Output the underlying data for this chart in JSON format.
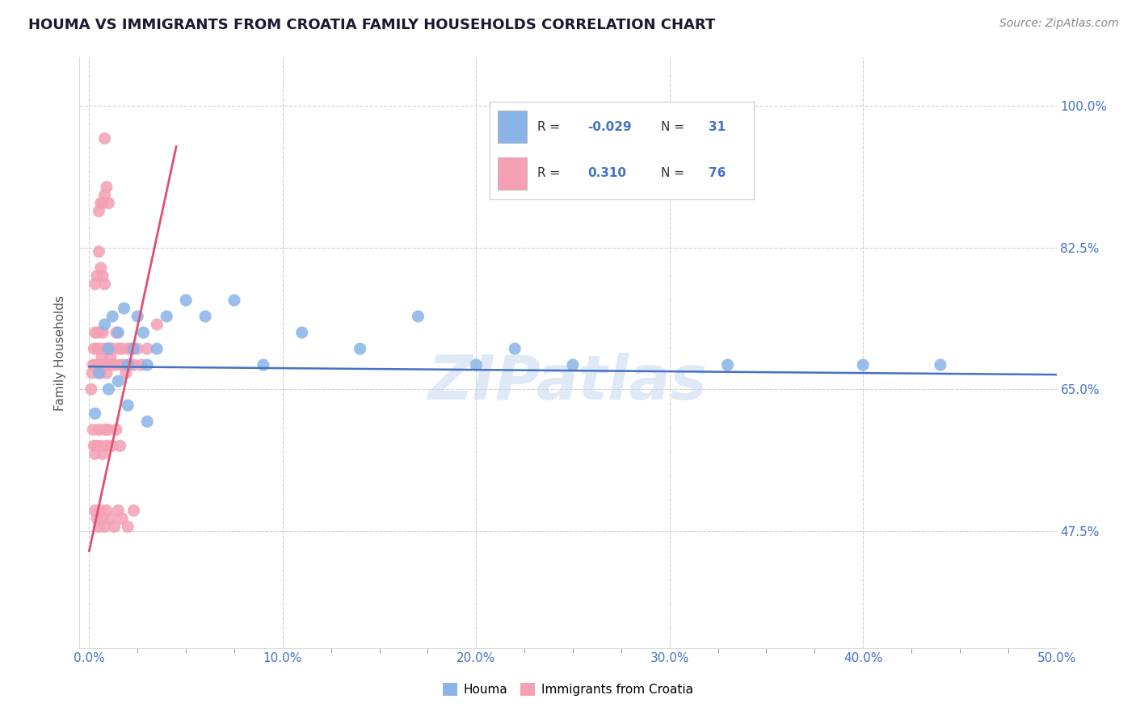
{
  "title": "HOUMA VS IMMIGRANTS FROM CROATIA FAMILY HOUSEHOLDS CORRELATION CHART",
  "source": "Source: ZipAtlas.com",
  "ylabel_left": "Family Households",
  "x_tick_labels": [
    "0.0%",
    "10.0%",
    "20.0%",
    "30.0%",
    "40.0%",
    "50.0%"
  ],
  "x_tick_values": [
    0.0,
    10.0,
    20.0,
    30.0,
    40.0,
    50.0
  ],
  "x_minor_ticks": [
    2.5,
    5.0,
    7.5,
    12.5,
    15.0,
    17.5,
    22.5,
    25.0,
    27.5,
    32.5,
    35.0,
    37.5,
    42.5,
    45.0,
    47.5
  ],
  "y_tick_labels_right": [
    "47.5%",
    "65.0%",
    "82.5%",
    "100.0%"
  ],
  "y_tick_values_right": [
    47.5,
    65.0,
    82.5,
    100.0
  ],
  "xlim": [
    -0.5,
    50.0
  ],
  "ylim": [
    33.0,
    106.0
  ],
  "houma_R": -0.029,
  "houma_N": 31,
  "croatia_R": 0.31,
  "croatia_N": 76,
  "houma_color": "#8ab4e8",
  "croatia_color": "#f4a0b5",
  "houma_line_color": "#4472c4",
  "croatia_line_color": "#e05070",
  "background_color": "#ffffff",
  "grid_color": "#cccccc",
  "title_color": "#1a1a2e",
  "title_fontsize": 13,
  "watermark_color": "#c8d8f0",
  "legend_r_color": "#4472c4",
  "legend_n_color": "#4472c4",
  "houma_scatter_x": [
    0.3,
    0.5,
    0.8,
    1.0,
    1.2,
    1.5,
    1.8,
    2.0,
    2.3,
    2.5,
    2.8,
    3.0,
    3.5,
    4.0,
    5.0,
    6.0,
    7.5,
    9.0,
    11.0,
    14.0,
    17.0,
    20.0,
    22.0,
    25.0,
    33.0,
    40.0,
    44.0,
    1.0,
    2.0,
    3.0,
    1.5
  ],
  "houma_scatter_y": [
    62.0,
    67.0,
    73.0,
    70.0,
    74.0,
    72.0,
    75.0,
    68.0,
    70.0,
    74.0,
    72.0,
    68.0,
    70.0,
    74.0,
    76.0,
    74.0,
    76.0,
    68.0,
    72.0,
    70.0,
    74.0,
    68.0,
    70.0,
    68.0,
    68.0,
    68.0,
    68.0,
    65.0,
    63.0,
    61.0,
    66.0
  ],
  "croatia_scatter_x": [
    0.1,
    0.15,
    0.2,
    0.25,
    0.3,
    0.35,
    0.4,
    0.45,
    0.5,
    0.55,
    0.6,
    0.65,
    0.7,
    0.75,
    0.8,
    0.85,
    0.9,
    0.95,
    1.0,
    1.05,
    1.1,
    1.15,
    1.2,
    1.3,
    1.4,
    1.5,
    1.6,
    1.7,
    1.8,
    1.9,
    2.0,
    2.1,
    2.2,
    2.3,
    2.5,
    2.7,
    3.0,
    3.5,
    0.3,
    0.4,
    0.5,
    0.6,
    0.7,
    0.8,
    0.5,
    0.6,
    0.7,
    0.8,
    0.9,
    1.0,
    0.2,
    0.25,
    0.3,
    0.4,
    0.5,
    0.6,
    0.7,
    0.8,
    0.9,
    1.0,
    1.2,
    1.4,
    1.6,
    0.3,
    0.4,
    0.5,
    0.6,
    0.7,
    0.8,
    0.9,
    1.1,
    1.3,
    1.5,
    1.7,
    2.0,
    2.3
  ],
  "croatia_scatter_y": [
    65.0,
    67.0,
    68.0,
    70.0,
    72.0,
    68.0,
    70.0,
    72.0,
    68.0,
    70.0,
    67.0,
    69.0,
    72.0,
    68.0,
    70.0,
    68.0,
    67.0,
    70.0,
    68.0,
    70.0,
    69.0,
    68.0,
    70.0,
    68.0,
    72.0,
    70.0,
    68.0,
    70.0,
    68.0,
    67.0,
    70.0,
    68.0,
    70.0,
    68.0,
    70.0,
    68.0,
    70.0,
    73.0,
    78.0,
    79.0,
    82.0,
    80.0,
    79.0,
    78.0,
    87.0,
    88.0,
    88.0,
    89.0,
    90.0,
    88.0,
    60.0,
    58.0,
    57.0,
    58.0,
    60.0,
    58.0,
    57.0,
    60.0,
    58.0,
    60.0,
    58.0,
    60.0,
    58.0,
    50.0,
    49.0,
    48.0,
    50.0,
    49.0,
    48.0,
    50.0,
    49.0,
    48.0,
    50.0,
    49.0,
    48.0,
    50.0
  ],
  "croatia_extra_x": [
    0.8
  ],
  "croatia_extra_y": [
    96.0
  ]
}
